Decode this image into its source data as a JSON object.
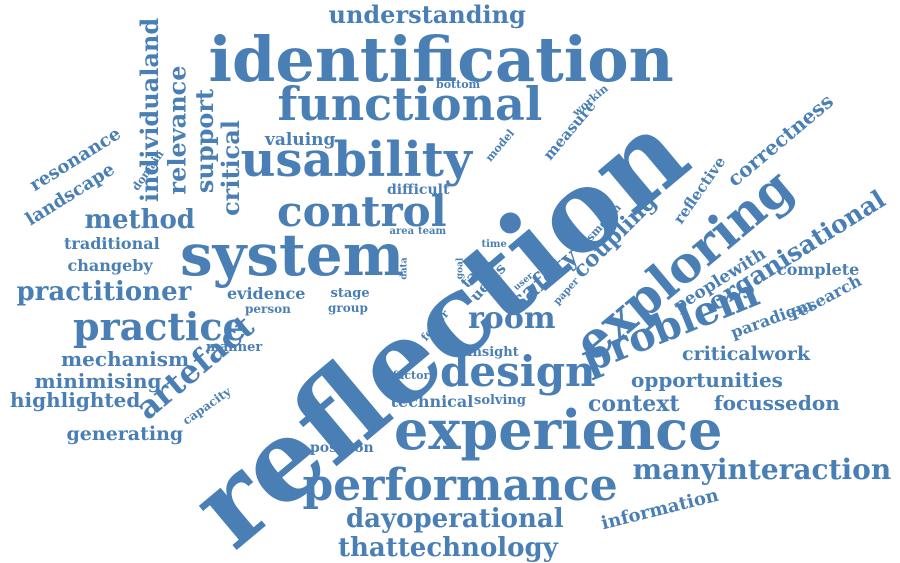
{
  "color": "#4a7fb5",
  "words": [
    {
      "text": "reflection",
      "weight": 100,
      "orientation": "diagonal-up"
    },
    {
      "text": "identification",
      "weight": 55
    },
    {
      "text": "system",
      "weight": 54
    },
    {
      "text": "exploring",
      "weight": 46,
      "orientation": "diagonal-up"
    },
    {
      "text": "experience",
      "weight": 45
    },
    {
      "text": "functional",
      "weight": 42
    },
    {
      "text": "usability",
      "weight": 42
    },
    {
      "text": "performance",
      "weight": 40
    },
    {
      "text": "problem",
      "weight": 40,
      "orientation": "diagonal-up"
    },
    {
      "text": "design",
      "weight": 40
    },
    {
      "text": "control",
      "weight": 38
    },
    {
      "text": "practice",
      "weight": 34
    },
    {
      "text": "artefact",
      "weight": 30,
      "orientation": "diagonal-up"
    },
    {
      "text": "room",
      "weight": 28
    },
    {
      "text": "manyinteraction",
      "weight": 25
    },
    {
      "text": "method",
      "weight": 24
    },
    {
      "text": "practitioner",
      "weight": 24
    },
    {
      "text": "dayoperational",
      "weight": 24
    },
    {
      "text": "thattechnology",
      "weight": 23
    },
    {
      "text": "understanding",
      "weight": 22
    },
    {
      "text": "organisational",
      "weight": 22,
      "orientation": "diagonal-up"
    },
    {
      "text": "safety",
      "weight": 22,
      "orientation": "diagonal-up"
    },
    {
      "text": "critical",
      "weight": 22,
      "orientation": "vertical-up"
    },
    {
      "text": "support",
      "weight": 22,
      "orientation": "vertical-up"
    },
    {
      "text": "relevance",
      "weight": 22,
      "orientation": "vertical-up"
    },
    {
      "text": "individualand",
      "weight": 22,
      "orientation": "vertical-up"
    },
    {
      "text": "context",
      "weight": 20
    },
    {
      "text": "coupling",
      "weight": 20,
      "orientation": "diagonal-up"
    },
    {
      "text": "correctness",
      "weight": 19,
      "orientation": "diagonal-up"
    },
    {
      "text": "opportunities",
      "weight": 18
    },
    {
      "text": "focussedon",
      "weight": 18
    },
    {
      "text": "mechanism",
      "weight": 18
    },
    {
      "text": "highlighted",
      "weight": 18
    },
    {
      "text": "minimising",
      "weight": 18
    },
    {
      "text": "generating",
      "weight": 17
    },
    {
      "text": "criticalwork",
      "weight": 17
    },
    {
      "text": "resonance",
      "weight": 17,
      "orientation": "diagonal-up"
    },
    {
      "text": "landscape",
      "weight": 17,
      "orientation": "diagonal-up"
    },
    {
      "text": "information",
      "weight": 16,
      "orientation": "diagonal-up"
    },
    {
      "text": "peoplewith",
      "weight": 16,
      "orientation": "diagonal-up"
    },
    {
      "text": "valuing",
      "weight": 16
    },
    {
      "text": "traditional",
      "weight": 15
    },
    {
      "text": "changeby",
      "weight": 15
    },
    {
      "text": "complete",
      "weight": 15
    },
    {
      "text": "evidence",
      "weight": 15
    },
    {
      "text": "technical",
      "weight": 15
    },
    {
      "text": "research",
      "weight": 15,
      "orientation": "diagonal-up"
    },
    {
      "text": "paradigm",
      "weight": 15,
      "orientation": "diagonal-up"
    },
    {
      "text": "reflective",
      "weight": 14,
      "orientation": "diagonal-up"
    },
    {
      "text": "uems",
      "weight": 14,
      "orientation": "diagonal-up"
    },
    {
      "text": "task",
      "weight": 14,
      "orientation": "diagonal-up"
    },
    {
      "text": "measure",
      "weight": 13,
      "orientation": "diagonal-up"
    },
    {
      "text": "difficult",
      "weight": 13
    },
    {
      "text": "position",
      "weight": 13
    },
    {
      "text": "solving",
      "weight": 12
    },
    {
      "text": "insight",
      "weight": 12
    },
    {
      "text": "manner",
      "weight": 12
    },
    {
      "text": "stage",
      "weight": 12
    },
    {
      "text": "capacity",
      "weight": 11,
      "orientation": "diagonal-up"
    },
    {
      "text": "person",
      "weight": 11
    },
    {
      "text": "group",
      "weight": 11
    },
    {
      "text": "factor",
      "weight": 10
    },
    {
      "text": "foster",
      "weight": 10,
      "orientation": "diagonal-up"
    },
    {
      "text": "smooth",
      "weight": 10,
      "orientation": "diagonal-up"
    },
    {
      "text": "workin",
      "weight": 10,
      "orientation": "diagonal-up"
    },
    {
      "text": "domain",
      "weight": 10,
      "orientation": "diagonal-up"
    },
    {
      "text": "model",
      "weight": 10,
      "orientation": "diagonal-up"
    },
    {
      "text": "bottom",
      "weight": 10
    },
    {
      "text": "paper",
      "weight": 9,
      "orientation": "diagonal-up"
    },
    {
      "text": "team",
      "weight": 9
    },
    {
      "text": "area",
      "weight": 9
    },
    {
      "text": "time",
      "weight": 9
    },
    {
      "text": "user",
      "weight": 8,
      "orientation": "diagonal-up"
    },
    {
      "text": "goal",
      "weight": 8,
      "orientation": "vertical-up"
    },
    {
      "text": "data",
      "weight": 8,
      "orientation": "vertical-up"
    }
  ]
}
